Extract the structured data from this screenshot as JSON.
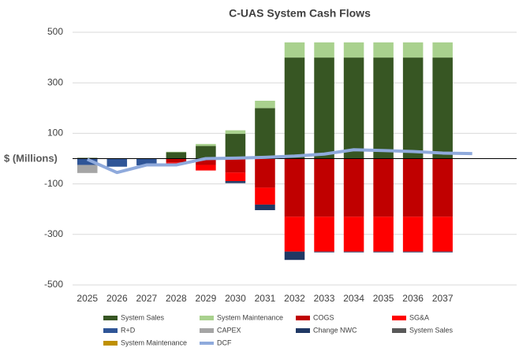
{
  "chart_data": {
    "type": "bar",
    "title": "C-UAS System Cash Flows",
    "y_label": "$ (Millions)",
    "categories": [
      "2025",
      "2026",
      "2027",
      "2028",
      "2029",
      "2030",
      "2031",
      "2032",
      "2033",
      "2034",
      "2035",
      "2036",
      "2037",
      null,
      null
    ],
    "ylim": [
      -500,
      500
    ],
    "yticks": [
      -500,
      -300,
      -100,
      100,
      300,
      500
    ],
    "grid": true,
    "legend": "bottom",
    "series": [
      {
        "name": "System Sales",
        "color": "#375623",
        "values": [
          3,
          0,
          0,
          25,
          50,
          98,
          200,
          400,
          400,
          400,
          400,
          400,
          400,
          null,
          null
        ]
      },
      {
        "name": "System Maintenance",
        "color": "#a9d18e",
        "values": [
          0,
          0,
          0,
          2,
          8,
          14,
          29,
          60,
          60,
          60,
          60,
          60,
          60,
          null,
          null
        ]
      },
      {
        "name": "COGS",
        "color": "#c00000",
        "values": [
          0,
          0,
          0,
          -15,
          -25,
          -55,
          -115,
          -230,
          -230,
          -230,
          -230,
          -230,
          -230,
          null,
          null
        ]
      },
      {
        "name": "SG&A",
        "color": "#ff0000",
        "values": [
          0,
          0,
          0,
          -5,
          -22,
          -34,
          -67,
          -138,
          -138,
          -138,
          -138,
          -138,
          -138,
          null,
          null
        ]
      },
      {
        "name": "R+D",
        "color": "#2f5597",
        "values": [
          -25,
          -32,
          -27,
          -3,
          0,
          0,
          0,
          0,
          0,
          0,
          0,
          0,
          0,
          null,
          null
        ]
      },
      {
        "name": "CAPEX",
        "color": "#a5a5a5",
        "values": [
          -32,
          0,
          0,
          0,
          0,
          0,
          0,
          0,
          0,
          0,
          0,
          0,
          0,
          null,
          null
        ]
      },
      {
        "name": "Change NWC",
        "color": "#203864",
        "values": [
          0,
          0,
          0,
          0,
          0,
          -8,
          -22,
          -33,
          -3,
          -3,
          -3,
          -3,
          -3,
          null,
          null
        ]
      },
      {
        "name": "System Sales",
        "color": "#595959",
        "values": [
          0,
          0,
          0,
          0,
          0,
          0,
          0,
          0,
          0,
          0,
          0,
          0,
          0,
          null,
          null
        ]
      },
      {
        "name": "System Maintenance",
        "color": "#bf9000",
        "values": [
          0,
          0,
          0,
          0,
          0,
          0,
          0,
          0,
          0,
          0,
          0,
          0,
          0,
          null,
          null
        ]
      },
      {
        "name": "DCF",
        "type": "line",
        "color": "#8faadc",
        "values": [
          -3,
          -55,
          -25,
          -25,
          0,
          2,
          5,
          10,
          18,
          35,
          32,
          28,
          22,
          20,
          null
        ]
      }
    ]
  }
}
